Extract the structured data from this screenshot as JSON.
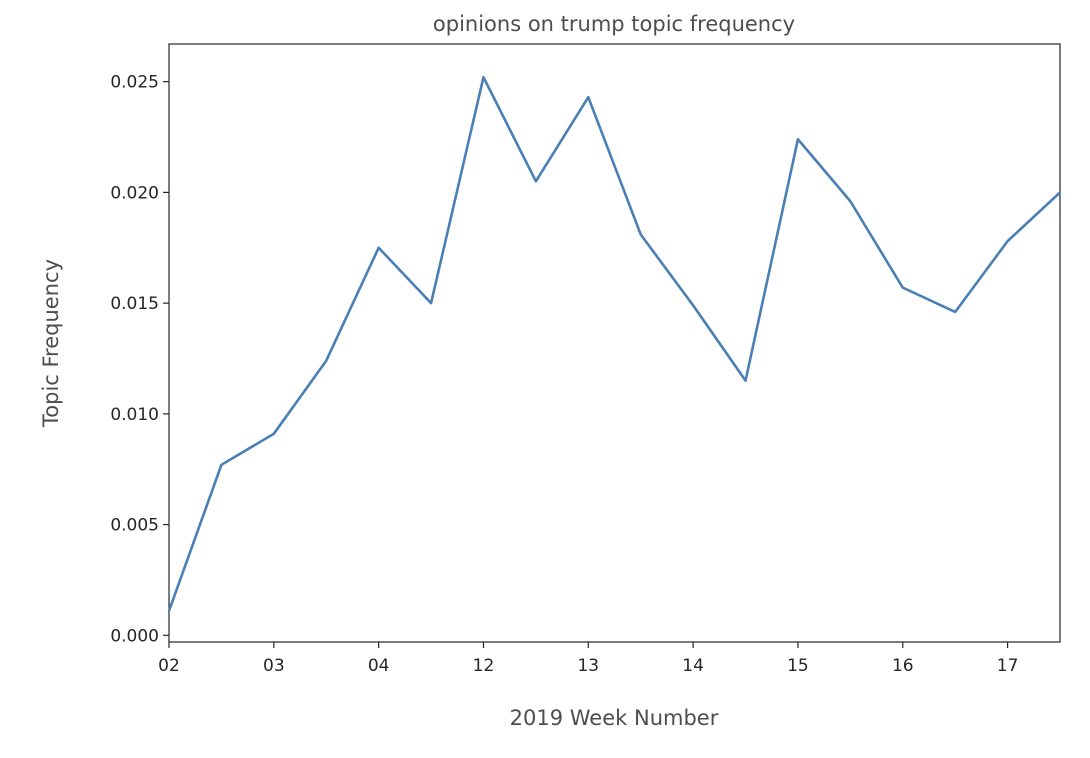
{
  "chart_data": {
    "type": "line",
    "title": "opinions on trump topic frequency",
    "xlabel": "2019 Week Number",
    "ylabel": "Topic Frequency",
    "x_tick_labels": [
      "02",
      "03",
      "04",
      "12",
      "13",
      "14",
      "15",
      "16",
      "17"
    ],
    "y_tick_labels": [
      "0.000",
      "0.005",
      "0.010",
      "0.015",
      "0.020",
      "0.025"
    ],
    "y_ticks": [
      0,
      0.005,
      0.01,
      0.015,
      0.02,
      0.025
    ],
    "x_range": [
      0,
      8.5
    ],
    "ylim": [
      -0.0003,
      0.0267
    ],
    "grid": false,
    "legend": "none",
    "series": [
      {
        "color": "#4a7fb5",
        "x": [
          0,
          0.5,
          1,
          1.5,
          2,
          2.5,
          3,
          3.5,
          4,
          4.5,
          5,
          5.5,
          6,
          6.5,
          7,
          7.5,
          8,
          8.5
        ],
        "values": [
          0.0011,
          0.0077,
          0.0091,
          0.0124,
          0.0175,
          0.015,
          0.0252,
          0.0205,
          0.0243,
          0.0181,
          0.0149,
          0.0115,
          0.0224,
          0.0196,
          0.0157,
          0.0146,
          0.0178,
          0.02
        ]
      }
    ]
  }
}
